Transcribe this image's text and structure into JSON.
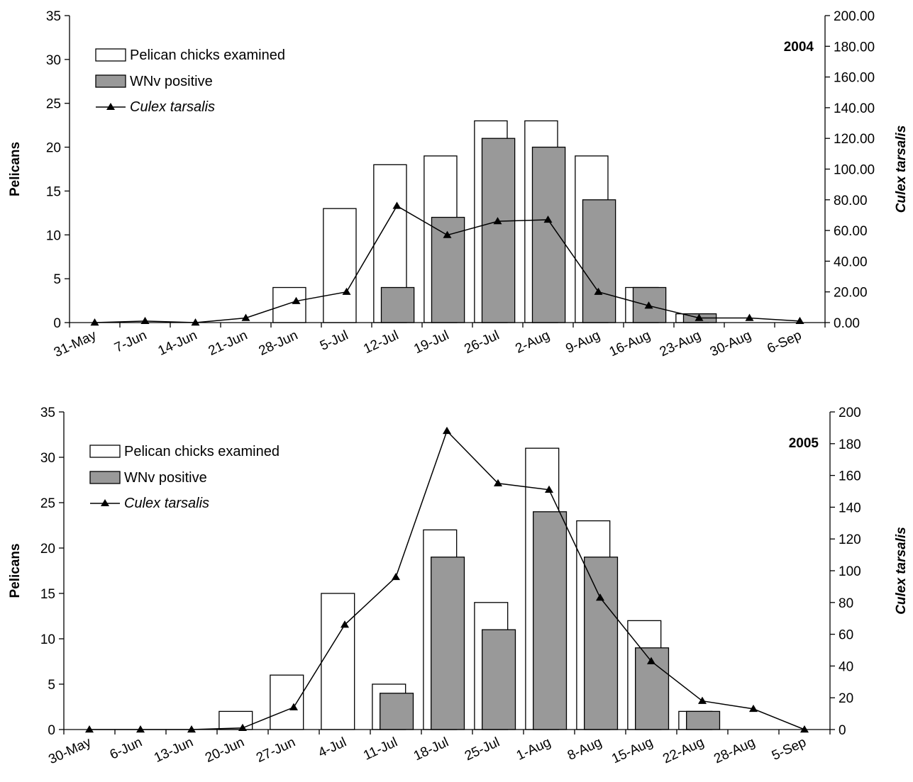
{
  "chart_data": [
    {
      "type": "bar",
      "year_label": "2004",
      "ylabel_left": "Pelicans",
      "ylabel_right": "Culex tarsalis",
      "ylim_left": [
        0,
        35
      ],
      "ylim_right": [
        0,
        200
      ],
      "yticks_left": [
        "0",
        "5",
        "10",
        "15",
        "20",
        "25",
        "30",
        "35"
      ],
      "yticks_right": [
        "0.00",
        "20.00",
        "40.00",
        "60.00",
        "80.00",
        "100.00",
        "120.00",
        "140.00",
        "160.00",
        "180.00",
        "200.00"
      ],
      "categories": [
        "31-May",
        "7-Jun",
        "14-Jun",
        "21-Jun",
        "28-Jun",
        "5-Jul",
        "12-Jul",
        "19-Jul",
        "26-Jul",
        "2-Aug",
        "9-Aug",
        "16-Aug",
        "23-Aug",
        "30-Aug",
        "6-Sep"
      ],
      "legend_position": "top-left",
      "series": [
        {
          "name": "Pelican chicks examined",
          "kind": "bar",
          "color": "#ffffff",
          "values": [
            0,
            0,
            0,
            0,
            4,
            13,
            18,
            19,
            23,
            23,
            19,
            4,
            1,
            0,
            0
          ]
        },
        {
          "name": "WNv positive",
          "kind": "bar",
          "color": "#999999",
          "values": [
            0,
            0,
            0,
            0,
            0,
            0,
            4,
            12,
            21,
            20,
            14,
            4,
            1,
            0,
            0
          ]
        },
        {
          "name": "Culex tarsalis",
          "kind": "line",
          "color": "#000000",
          "x": [
            0,
            1,
            2,
            3,
            4,
            5,
            6,
            7,
            8,
            9,
            10,
            11,
            12,
            13,
            14
          ],
          "values": [
            0,
            1,
            0,
            3,
            14,
            20,
            76,
            57,
            66,
            67,
            20,
            11,
            3,
            3,
            1
          ]
        }
      ]
    },
    {
      "type": "bar",
      "year_label": "2005",
      "ylabel_left": "Pelicans",
      "ylabel_right": "Culex tarsalis",
      "ylim_left": [
        0,
        35
      ],
      "ylim_right": [
        0,
        200
      ],
      "yticks_left": [
        "0",
        "5",
        "10",
        "15",
        "20",
        "25",
        "30",
        "35"
      ],
      "yticks_right": [
        "0",
        "20",
        "40",
        "60",
        "80",
        "100",
        "120",
        "140",
        "160",
        "180",
        "200"
      ],
      "categories": [
        "30-May",
        "6-Jun",
        "13-Jun",
        "20-Jun",
        "27-Jun",
        "4-Jul",
        "11-Jul",
        "18-Jul",
        "25-Jul",
        "1-Aug",
        "8-Aug",
        "15-Aug",
        "22-Aug",
        "28-Aug",
        "5-Sep"
      ],
      "legend_position": "top-left",
      "series": [
        {
          "name": "Pelican chicks examined",
          "kind": "bar",
          "color": "#ffffff",
          "values": [
            0,
            0,
            0,
            2,
            6,
            15,
            5,
            22,
            14,
            31,
            23,
            12,
            2,
            0,
            0
          ]
        },
        {
          "name": "WNv positive",
          "kind": "bar",
          "color": "#999999",
          "values": [
            0,
            0,
            0,
            0,
            0,
            0,
            4,
            19,
            11,
            24,
            19,
            9,
            2,
            0,
            0
          ]
        },
        {
          "name": "Culex tarsalis",
          "kind": "line",
          "color": "#000000",
          "x": [
            0,
            1,
            2,
            3,
            4,
            5,
            6,
            7,
            8,
            9,
            10,
            11,
            12,
            13,
            14
          ],
          "values": [
            0,
            0,
            0,
            1,
            14,
            66,
            96,
            188,
            155,
            151,
            83,
            43,
            18,
            13,
            0
          ]
        }
      ]
    }
  ]
}
